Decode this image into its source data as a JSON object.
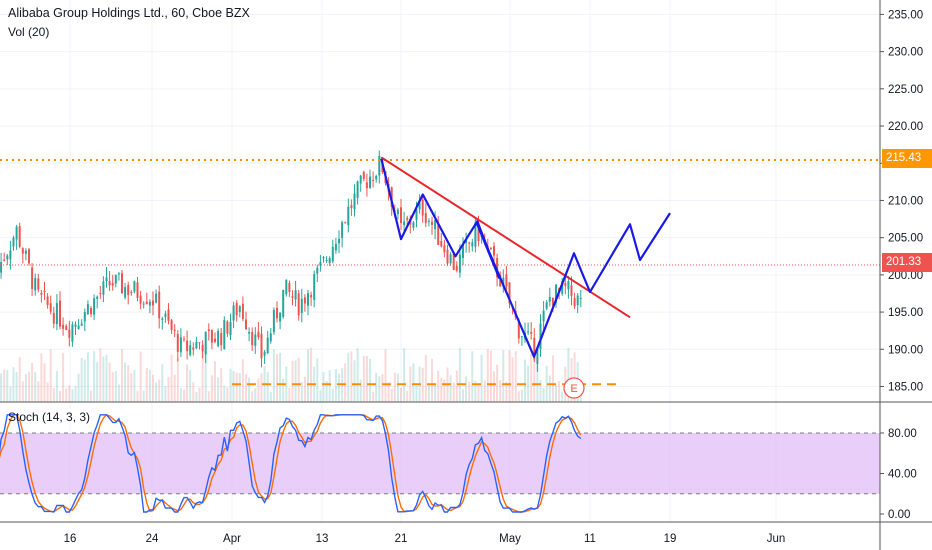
{
  "header": {
    "title": "Alibaba Group Holdings Ltd., 60, Cboe BZX",
    "volume_label": "Vol (20)",
    "stoch_label": "Stoch (14, 3, 3)"
  },
  "price_tags": {
    "resistance": "215.43",
    "last": "201.33"
  },
  "earnings_marker": "E",
  "colors": {
    "up": "#26a69a",
    "down": "#ef5350",
    "trendline": "#e8262b",
    "path": "#1a1ae6",
    "resistance": "#ff8c00",
    "last_price": "#ef5350",
    "stoch_k": "#2962ff",
    "stoch_d": "#ff6d00",
    "stoch_band": "#e1bef7"
  },
  "chart_data": [
    {
      "type": "line",
      "title": "Alibaba Group Holdings Ltd., 60, Cboe BZX",
      "ylim": [
        183,
        236
      ],
      "y_ticks": [
        "185.00",
        "190.00",
        "195.00",
        "200.00",
        "205.00",
        "210.00",
        "215.00",
        "220.00",
        "225.00",
        "230.00",
        "235.00"
      ],
      "x_ticks": [
        "16",
        "24",
        "Apr",
        "13",
        "21",
        "May",
        "11",
        "19",
        "Jun"
      ],
      "price_path_anchors": [
        {
          "x": "Mar 9",
          "y": 200
        },
        {
          "x": "Mar 11",
          "y": 206
        },
        {
          "x": "Mar 13",
          "y": 197
        },
        {
          "x": "Mar 16",
          "y": 193
        },
        {
          "x": "Mar 20",
          "y": 199
        },
        {
          "x": "Mar 24",
          "y": 197
        },
        {
          "x": "Mar 27",
          "y": 190
        },
        {
          "x": "Mar 31",
          "y": 192
        },
        {
          "x": "Apr 2",
          "y": 196
        },
        {
          "x": "Apr 5",
          "y": 189
        },
        {
          "x": "Apr 8",
          "y": 198
        },
        {
          "x": "Apr 10",
          "y": 196
        },
        {
          "x": "Apr 13",
          "y": 201
        },
        {
          "x": "Apr 15",
          "y": 207
        },
        {
          "x": "Apr 17",
          "y": 212
        },
        {
          "x": "Apr 19",
          "y": 215
        },
        {
          "x": "Apr 21",
          "y": 206
        },
        {
          "x": "Apr 23",
          "y": 209
        },
        {
          "x": "Apr 26",
          "y": 201
        },
        {
          "x": "Apr 28",
          "y": 206
        },
        {
          "x": "Apr 30",
          "y": 200
        },
        {
          "x": "May 2",
          "y": 193
        },
        {
          "x": "May 4",
          "y": 190
        },
        {
          "x": "May 6",
          "y": 197
        },
        {
          "x": "May 8",
          "y": 198
        },
        {
          "x": "May 10",
          "y": 196
        }
      ],
      "resistance_level": 215.43,
      "last_price": 201.33,
      "support_level": 185.3,
      "trendline": [
        {
          "x": "Apr 19",
          "y": 215.8
        },
        {
          "x": "May 15",
          "y": 194.3
        }
      ],
      "projected_zigzag": [
        {
          "x": "Apr 19",
          "y": 215.6
        },
        {
          "x": "Apr 21",
          "y": 204.8
        },
        {
          "x": "Apr 23",
          "y": 210.8
        },
        {
          "x": "Apr 26",
          "y": 202.5
        },
        {
          "x": "Apr 28",
          "y": 207.2
        },
        {
          "x": "Apr 30",
          "y": 199.6
        },
        {
          "x": "Apr 28",
          "y": 206.8
        },
        {
          "x": "May 4",
          "y": 189
        },
        {
          "x": "May 9",
          "y": 202.9
        },
        {
          "x": "May 11",
          "y": 197.7
        },
        {
          "x": "May 15",
          "y": 206.8
        },
        {
          "x": "May 16",
          "y": 202
        },
        {
          "x": "May 19",
          "y": 208.3
        }
      ]
    },
    {
      "type": "line",
      "title": "Stoch (14, 3, 3)",
      "ylim": [
        -2,
        100
      ],
      "y_ticks": [
        "0.00",
        "40.00",
        "80.00"
      ],
      "band": [
        20,
        80
      ]
    }
  ]
}
